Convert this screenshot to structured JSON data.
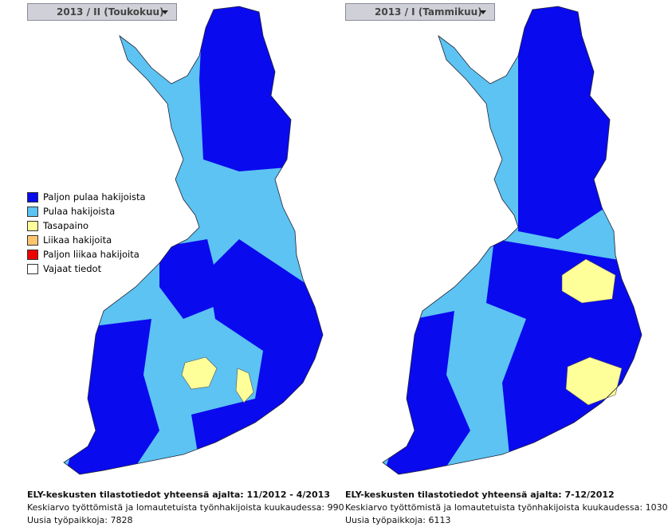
{
  "panels": [
    {
      "dropdown": "2013 / II (Toukokuu)",
      "footer": {
        "title": "ELY-keskusten tilastotiedot yhteensä ajalta: 11/2012 - 4/2013",
        "line1": "Keskiarvo työttömistä ja lomautetuista työnhakijoista kuukaudessa: 990",
        "line2": "Uusia työpaikkoja: 7828"
      }
    },
    {
      "dropdown": "2013 / I (Tammikuu)",
      "footer": {
        "title": "ELY-keskusten tilastotiedot yhteensä ajalta: 7-12/2012",
        "line1": "Keskiarvo työttömistä ja lomautetuista työnhakijoista kuukaudessa: 1030",
        "line2": "Uusia työpaikkoja: 6113"
      }
    }
  ],
  "legend": [
    {
      "label": "Paljon pulaa hakijoista",
      "color": "#0a0aee"
    },
    {
      "label": "Pulaa hakijoista",
      "color": "#5cc3f2"
    },
    {
      "label": "Tasapaino",
      "color": "#ffff99"
    },
    {
      "label": "Liikaa hakijoita",
      "color": "#ffc56e"
    },
    {
      "label": "Paljon liikaa hakijoita",
      "color": "#ee0000"
    },
    {
      "label": "Vajaat tiedot",
      "color": "#ffffff"
    }
  ]
}
